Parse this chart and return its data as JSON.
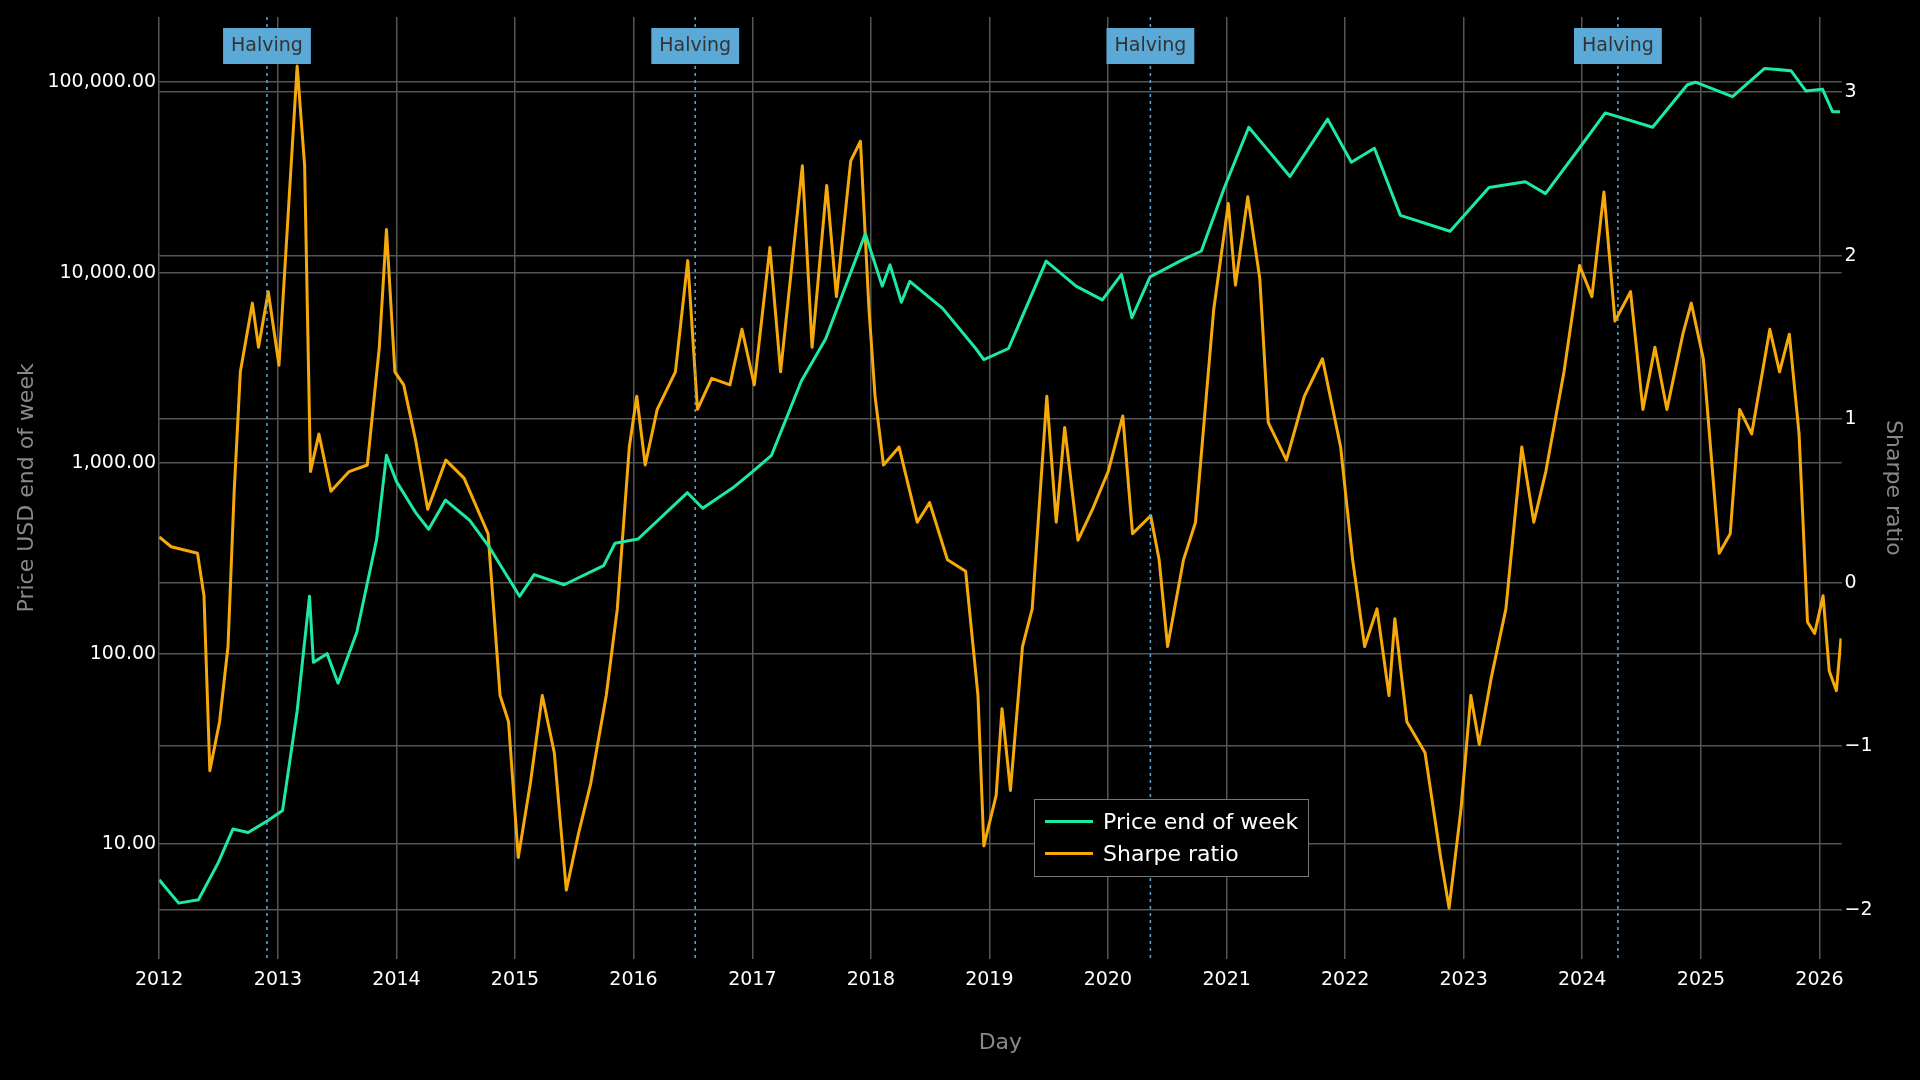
{
  "chart_data": {
    "type": "line",
    "xlabel": "Day",
    "ylabel": "Price USD end of week",
    "y2label": "Sharpe ratio",
    "xlim": [
      "2012-01-01",
      "2026-03-10"
    ],
    "xticks": [
      "2012",
      "2013",
      "2014",
      "2015",
      "2016",
      "2017",
      "2018",
      "2019",
      "2020",
      "2021",
      "2022",
      "2023",
      "2024",
      "2025",
      "2026"
    ],
    "ylim": [
      2.5,
      220000
    ],
    "yticks": [
      {
        "value": 10,
        "label": "10.00"
      },
      {
        "value": 100,
        "label": "100.00"
      },
      {
        "value": 1000,
        "label": "1,000.00"
      },
      {
        "value": 10000,
        "label": "10,000.00"
      },
      {
        "value": 100000,
        "label": "100,000.00"
      }
    ],
    "y2lim": [
      -2.3,
      3.46
    ],
    "y2ticks": [
      {
        "value": -2,
        "label": "−2"
      },
      {
        "value": -1,
        "label": "−1"
      },
      0,
      1,
      2,
      3
    ],
    "log": "y",
    "grid": true,
    "legend": "bottom",
    "marker": "none",
    "line_style": "solid",
    "ref_lines": [
      {
        "axis": "x",
        "value": "2012-11-28",
        "label": "Halving",
        "color": "#5aa9d6",
        "line_style": "dotted"
      },
      {
        "axis": "x",
        "value": "2016-07-09",
        "label": "Halving",
        "color": "#5aa9d6",
        "line_style": "dotted"
      },
      {
        "axis": "x",
        "value": "2020-05-11",
        "label": "Halving",
        "color": "#5aa9d6",
        "line_style": "dotted"
      },
      {
        "axis": "x",
        "value": "2024-04-20",
        "label": "Halving",
        "color": "#5aa9d6",
        "line_style": "dotted"
      }
    ],
    "series": [
      {
        "name": "Price end of week",
        "color": "#1de9a0",
        "x": [
          "2012-01-01",
          "2012-03-01",
          "2012-05-01",
          "2012-07-01",
          "2012-08-15",
          "2012-10-01",
          "2012-12-01",
          "2013-01-15",
          "2013-03-01",
          "2013-04-08",
          "2013-04-20",
          "2013-06-01",
          "2013-07-05",
          "2013-09-01",
          "2013-11-01",
          "2013-12-01",
          "2014-01-01",
          "2014-03-01",
          "2014-04-10",
          "2014-06-01",
          "2014-08-15",
          "2014-10-15",
          "2015-01-15",
          "2015-03-01",
          "2015-06-01",
          "2015-10-01",
          "2015-11-05",
          "2016-01-15",
          "2016-06-15",
          "2016-08-01",
          "2016-11-01",
          "2017-01-01",
          "2017-03-01",
          "2017-06-01",
          "2017-08-15",
          "2017-12-15",
          "2018-02-05",
          "2018-03-01",
          "2018-04-05",
          "2018-05-01",
          "2018-08-10",
          "2018-11-20",
          "2018-12-15",
          "2019-03-01",
          "2019-06-25",
          "2019-09-25",
          "2019-12-15",
          "2020-02-12",
          "2020-03-15",
          "2020-05-10",
          "2020-08-10",
          "2020-10-15",
          "2020-12-25",
          "2021-03-10",
          "2021-07-15",
          "2021-11-08",
          "2022-01-20",
          "2022-04-01",
          "2022-06-20",
          "2022-11-20",
          "2023-03-20",
          "2023-07-10",
          "2023-09-10",
          "2023-12-10",
          "2024-03-12",
          "2024-08-05",
          "2024-11-20",
          "2024-12-15",
          "2025-04-08",
          "2025-07-15",
          "2025-10-05",
          "2025-11-20",
          "2026-01-10",
          "2026-02-10",
          "2026-03-05"
        ],
        "values": [
          6.5,
          4.9,
          5.1,
          8,
          12,
          11.5,
          13.3,
          15,
          50,
          200,
          90,
          100,
          70,
          130,
          400,
          1100,
          800,
          550,
          450,
          640,
          500,
          360,
          200,
          260,
          230,
          290,
          380,
          400,
          700,
          580,
          740,
          900,
          1100,
          2700,
          4500,
          16000,
          8500,
          11000,
          7000,
          9000,
          6500,
          4000,
          3500,
          4000,
          11500,
          8500,
          7200,
          9800,
          5800,
          9500,
          11500,
          13000,
          28000,
          58000,
          32000,
          64000,
          38000,
          45000,
          20000,
          16500,
          28000,
          30000,
          26000,
          42000,
          69000,
          58000,
          97000,
          100000,
          84000,
          118000,
          115000,
          90000,
          92000,
          70000,
          70000
        ]
      },
      {
        "name": "Sharpe ratio",
        "color": "#f5a90a",
        "axis": "y2",
        "x": [
          "2012-01-01",
          "2012-02-07",
          "2012-04-28",
          "2012-05-18",
          "2012-06-05",
          "2012-07-05",
          "2012-07-31",
          "2012-08-19",
          "2012-09-07",
          "2012-10-14",
          "2012-11-02",
          "2012-12-02",
          "2013-01-04",
          "2013-03-01",
          "2013-03-24",
          "2013-04-11",
          "2013-05-07",
          "2013-06-13",
          "2013-08-08",
          "2013-10-03",
          "2013-11-09",
          "2013-12-01",
          "2013-12-27",
          "2014-01-23",
          "2014-03-01",
          "2014-04-07",
          "2014-06-02",
          "2014-07-28",
          "2014-10-10",
          "2014-11-16",
          "2014-12-12",
          "2015-01-11",
          "2015-02-17",
          "2015-03-26",
          "2015-05-02",
          "2015-06-08",
          "2015-07-16",
          "2015-08-22",
          "2015-10-09",
          "2015-11-12",
          "2015-12-19",
          "2016-01-11",
          "2016-02-06",
          "2016-03-14",
          "2016-05-09",
          "2016-06-16",
          "2016-07-16",
          "2016-08-29",
          "2016-10-24",
          "2016-11-30",
          "2017-01-07",
          "2017-02-24",
          "2017-03-29",
          "2017-06-04",
          "2017-07-04",
          "2017-08-18",
          "2017-09-17",
          "2017-10-31",
          "2017-11-30",
          "2017-12-26",
          "2018-01-14",
          "2018-02-09",
          "2018-03-29",
          "2018-05-24",
          "2018-07-01",
          "2018-08-25",
          "2018-10-20",
          "2018-11-27",
          "2018-12-15",
          "2019-01-22",
          "2019-02-09",
          "2019-03-07",
          "2019-04-13",
          "2019-05-13",
          "2019-06-27",
          "2019-07-26",
          "2019-08-21",
          "2019-10-01",
          "2019-11-15",
          "2020-01-02",
          "2020-02-16",
          "2020-03-17",
          "2020-05-12",
          "2020-06-07",
          "2020-07-03",
          "2020-08-21",
          "2020-09-27",
          "2020-11-22",
          "2021-01-06",
          "2021-01-28",
          "2021-03-07",
          "2021-04-13",
          "2021-05-09",
          "2021-07-04",
          "2021-08-28",
          "2021-10-23",
          "2021-12-18",
          "2022-01-24",
          "2022-03-02",
          "2022-04-09",
          "2022-05-16",
          "2022-06-03",
          "2022-07-10",
          "2022-09-04",
          "2022-10-22",
          "2022-11-17",
          "2022-12-24",
          "2023-01-23",
          "2023-02-18",
          "2023-03-27",
          "2023-05-11",
          "2023-06-29",
          "2023-08-05",
          "2023-09-11",
          "2023-11-06",
          "2023-12-24",
          "2024-01-31",
          "2024-03-08",
          "2024-04-11",
          "2024-05-29",
          "2024-07-06",
          "2024-08-12",
          "2024-09-18",
          "2024-11-06",
          "2024-12-02",
          "2025-01-08",
          "2025-02-26",
          "2025-04-01",
          "2025-04-30",
          "2025-06-06",
          "2025-08-01",
          "2025-08-31",
          "2025-09-30",
          "2025-10-30",
          "2025-11-25",
          "2025-12-17",
          "2026-01-12",
          "2026-01-31",
          "2026-02-22",
          "2026-03-08"
        ],
        "values": [
          0.28,
          0.22,
          0.18,
          -0.08,
          -1.15,
          -0.85,
          -0.39,
          0.56,
          1.29,
          1.71,
          1.44,
          1.78,
          1.33,
          3.16,
          2.55,
          0.68,
          0.91,
          0.56,
          0.68,
          0.72,
          1.44,
          2.16,
          1.29,
          1.21,
          0.87,
          0.45,
          0.75,
          0.64,
          0.3,
          -0.69,
          -0.85,
          -1.68,
          -1.23,
          -0.69,
          -1.04,
          -1.88,
          -1.53,
          -1.23,
          -0.69,
          -0.16,
          0.83,
          1.14,
          0.72,
          1.06,
          1.29,
          1.97,
          1.06,
          1.25,
          1.21,
          1.55,
          1.21,
          2.05,
          1.29,
          2.55,
          1.44,
          2.43,
          1.75,
          2.58,
          2.7,
          1.68,
          1.14,
          0.72,
          0.83,
          0.37,
          0.49,
          0.14,
          0.07,
          -0.69,
          -1.61,
          -1.3,
          -0.77,
          -1.27,
          -0.39,
          -0.16,
          1.14,
          0.37,
          0.95,
          0.26,
          0.45,
          0.68,
          1.02,
          0.3,
          0.41,
          0.14,
          -0.39,
          0.14,
          0.37,
          1.67,
          2.32,
          1.82,
          2.36,
          1.86,
          0.98,
          0.75,
          1.14,
          1.37,
          0.83,
          0.14,
          -0.39,
          -0.16,
          -0.69,
          -0.22,
          -0.85,
          -1.04,
          -1.68,
          -1.99,
          -1.38,
          -0.69,
          -0.99,
          -0.58,
          -0.16,
          0.83,
          0.37,
          0.68,
          1.29,
          1.94,
          1.75,
          2.39,
          1.6,
          1.78,
          1.06,
          1.44,
          1.06,
          1.52,
          1.71,
          1.37,
          0.18,
          0.3,
          1.06,
          0.91,
          1.55,
          1.29,
          1.52,
          0.91,
          -0.24,
          -0.31,
          -0.08,
          -0.54,
          -0.66,
          -0.34
        ]
      }
    ]
  }
}
